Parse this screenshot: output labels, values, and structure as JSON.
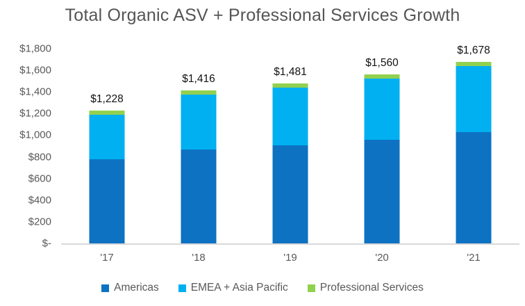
{
  "colors": {
    "title_text": "#555555",
    "axis_text": "#595959",
    "value_label_text": "#111111",
    "axis_line": "#d9d9d9",
    "background": "#ffffff"
  },
  "chart_data": {
    "type": "bar",
    "stacked": true,
    "title": "Total Organic ASV + Professional Services Growth",
    "categories": [
      "'17",
      "'18",
      "'19",
      "'20",
      "'21"
    ],
    "series": [
      {
        "name": "Americas",
        "color": "#0e72c2",
        "values": [
          778,
          870,
          905,
          958,
          1028
        ]
      },
      {
        "name": "EMEA + Asia Pacific",
        "color": "#00b0f0",
        "values": [
          412,
          508,
          535,
          564,
          610
        ]
      },
      {
        "name": "Professional Services",
        "color": "#92d050",
        "values": [
          38,
          38,
          41,
          38,
          40
        ]
      }
    ],
    "totals": [
      1228,
      1416,
      1481,
      1560,
      1678
    ],
    "total_labels": [
      "$1,228",
      "$1,416",
      "$1,481",
      "$1,560",
      "$1,678"
    ],
    "y_axis": {
      "min": 0,
      "max": 1800,
      "ticks": [
        {
          "label": "$-",
          "value": 0
        },
        {
          "label": "$200",
          "value": 200
        },
        {
          "label": "$400",
          "value": 400
        },
        {
          "label": "$600",
          "value": 600
        },
        {
          "label": "$800",
          "value": 800
        },
        {
          "label": "$1,000",
          "value": 1000
        },
        {
          "label": "$1,200",
          "value": 1200
        },
        {
          "label": "$1,400",
          "value": 1400
        },
        {
          "label": "$1,600",
          "value": 1600
        },
        {
          "label": "$1,800",
          "value": 1800
        }
      ]
    },
    "gridlines": false,
    "legend_position": "bottom"
  }
}
